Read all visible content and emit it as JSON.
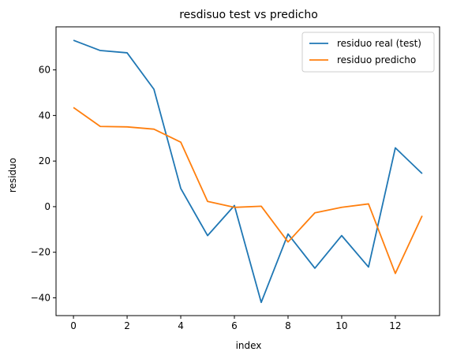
{
  "chart_data": {
    "type": "line",
    "title": "resdisuo test vs predicho",
    "xlabel": "index",
    "ylabel": "residuo",
    "xlim": [
      -0.65,
      13.65
    ],
    "ylim": [
      -47.8,
      78.9
    ],
    "xticks": [
      0,
      2,
      4,
      6,
      8,
      10,
      12
    ],
    "yticks": [
      -40,
      -20,
      0,
      20,
      40,
      60
    ],
    "x": [
      0,
      1,
      2,
      3,
      4,
      5,
      6,
      7,
      8,
      9,
      10,
      11,
      12,
      13
    ],
    "series": [
      {
        "name": "residuo real (test)",
        "color": "#1f77b4",
        "values": [
          73.0,
          68.5,
          67.5,
          51.5,
          8.0,
          -12.7,
          0.5,
          -42.0,
          -12.0,
          -27.0,
          -12.7,
          -26.5,
          25.8,
          14.5
        ]
      },
      {
        "name": "residuo predicho",
        "color": "#ff7f0e",
        "values": [
          43.5,
          35.2,
          35.0,
          34.0,
          28.3,
          2.3,
          -0.3,
          0.2,
          -15.5,
          -2.7,
          -0.3,
          1.2,
          -29.3,
          -4.0
        ]
      }
    ],
    "legend": "top-right",
    "grid": false
  }
}
